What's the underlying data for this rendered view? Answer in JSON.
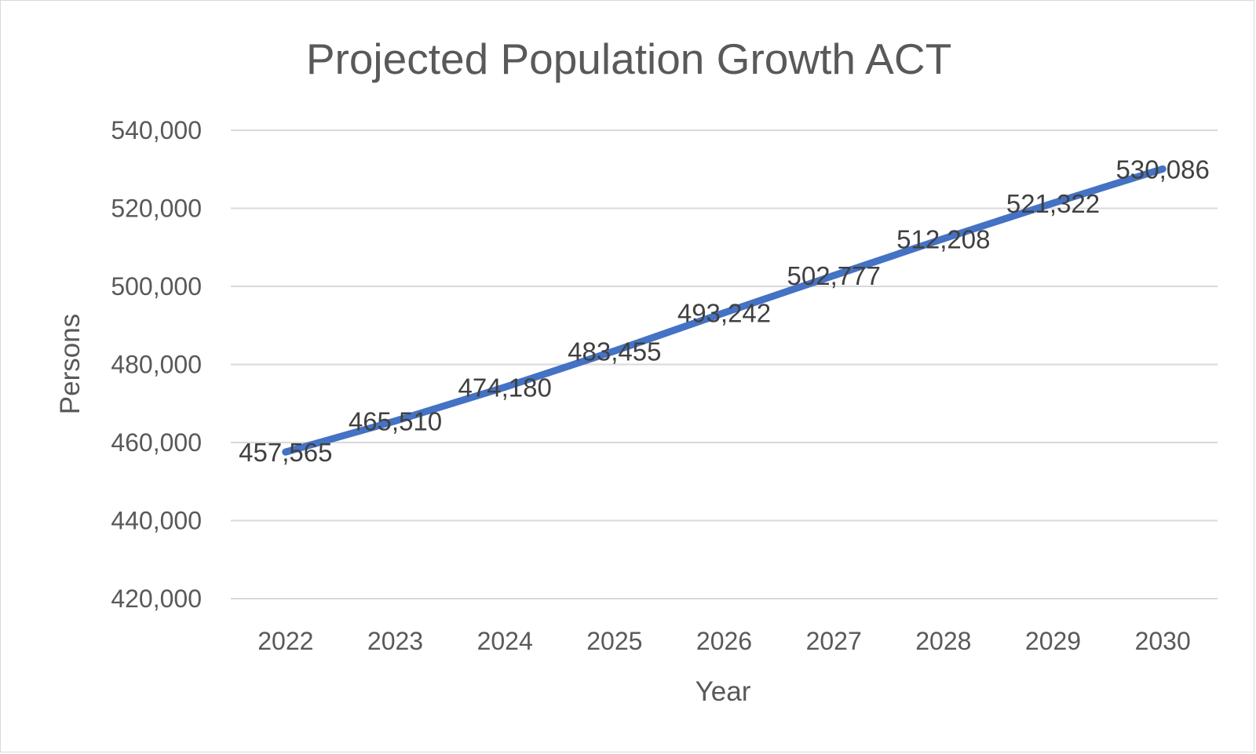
{
  "chart_data": {
    "type": "line",
    "title": "Projected Population Growth ACT",
    "xlabel": "Year",
    "ylabel": "Persons",
    "categories": [
      "2022",
      "2023",
      "2024",
      "2025",
      "2026",
      "2027",
      "2028",
      "2029",
      "2030"
    ],
    "series": [
      {
        "values": [
          457565,
          465510,
          474180,
          483455,
          493242,
          502777,
          512208,
          521322,
          530086
        ],
        "labels": [
          "457,565",
          "465,510",
          "474,180",
          "483,455",
          "493,242",
          "502,777",
          "512,208",
          "521,322",
          "530,086"
        ],
        "color": "#4472c4"
      }
    ],
    "ylim": [
      420000,
      540000
    ],
    "yticks": [
      420000,
      440000,
      460000,
      480000,
      500000,
      520000,
      540000
    ],
    "ytick_labels": [
      "420,000",
      "440,000",
      "460,000",
      "480,000",
      "500,000",
      "520,000",
      "540,000"
    ],
    "grid": true,
    "legend": "none",
    "colors": {
      "grid": "#d9d9d9",
      "text": "#595959",
      "label": "#404040",
      "border": "#d9d9d9"
    }
  }
}
